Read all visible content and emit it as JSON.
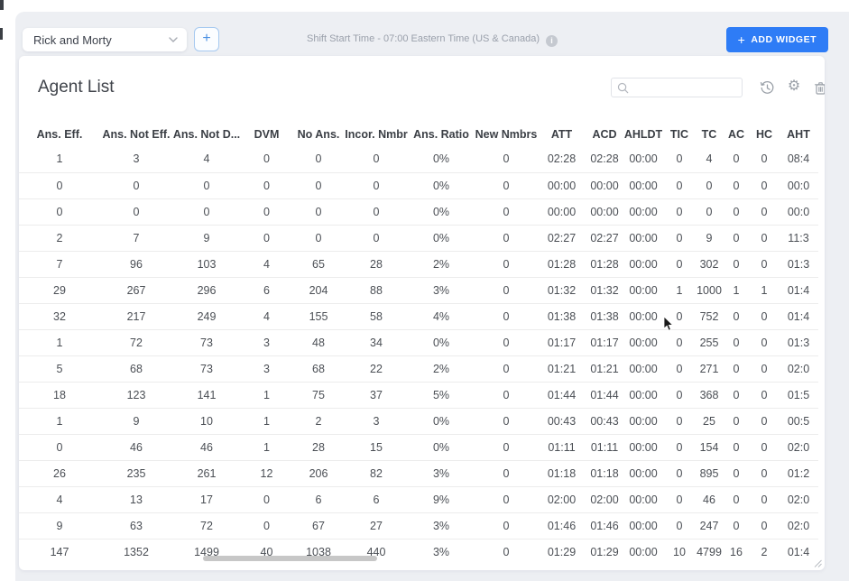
{
  "toolbar": {
    "dashboard_select": {
      "value": "Rick and Morty"
    },
    "add_tab": {
      "plus": "+"
    },
    "shift_info": "Shift Start Time - 07:00 Eastern Time (US & Canada)",
    "info_glyph": "i",
    "add_widget": {
      "plus": "+",
      "label": "ADD WIDGET"
    }
  },
  "widget": {
    "title": "Agent List",
    "search": {
      "value": "",
      "placeholder": ""
    },
    "icons": {
      "gear": "⚙"
    },
    "table": {
      "columns": [
        "Ans. Eff.",
        "Ans. Not Eff.",
        "Ans. Not D...",
        "DVM",
        "No Ans.",
        "Incor. Nmbr",
        "Ans. Ratio",
        "New Nmbrs",
        "ATT",
        "ACD",
        "AHLDT",
        "TIC",
        "TC",
        "AC",
        "HC",
        "AHT"
      ],
      "rows": [
        [
          "1",
          "3",
          "4",
          "0",
          "0",
          "0",
          "0%",
          "0",
          "02:28",
          "02:28",
          "00:00",
          "0",
          "4",
          "0",
          "0",
          "08:4"
        ],
        [
          "0",
          "0",
          "0",
          "0",
          "0",
          "0",
          "0%",
          "0",
          "00:00",
          "00:00",
          "00:00",
          "0",
          "0",
          "0",
          "0",
          "00:0"
        ],
        [
          "0",
          "0",
          "0",
          "0",
          "0",
          "0",
          "0%",
          "0",
          "00:00",
          "00:00",
          "00:00",
          "0",
          "0",
          "0",
          "0",
          "00:0"
        ],
        [
          "2",
          "7",
          "9",
          "0",
          "0",
          "0",
          "0%",
          "0",
          "02:27",
          "02:27",
          "00:00",
          "0",
          "9",
          "0",
          "0",
          "11:3"
        ],
        [
          "7",
          "96",
          "103",
          "4",
          "65",
          "28",
          "2%",
          "0",
          "01:28",
          "01:28",
          "00:00",
          "0",
          "302",
          "0",
          "0",
          "01:3"
        ],
        [
          "29",
          "267",
          "296",
          "6",
          "204",
          "88",
          "3%",
          "0",
          "01:32",
          "01:32",
          "00:00",
          "1",
          "1000",
          "1",
          "1",
          "01:4"
        ],
        [
          "32",
          "217",
          "249",
          "4",
          "155",
          "58",
          "4%",
          "0",
          "01:38",
          "01:38",
          "00:00",
          "0",
          "752",
          "0",
          "0",
          "01:4"
        ],
        [
          "1",
          "72",
          "73",
          "3",
          "48",
          "34",
          "0%",
          "0",
          "01:17",
          "01:17",
          "00:00",
          "0",
          "255",
          "0",
          "0",
          "01:3"
        ],
        [
          "5",
          "68",
          "73",
          "3",
          "68",
          "22",
          "2%",
          "0",
          "01:21",
          "01:21",
          "00:00",
          "0",
          "271",
          "0",
          "0",
          "02:0"
        ],
        [
          "18",
          "123",
          "141",
          "1",
          "75",
          "37",
          "5%",
          "0",
          "01:44",
          "01:44",
          "00:00",
          "0",
          "368",
          "0",
          "0",
          "01:5"
        ],
        [
          "1",
          "9",
          "10",
          "1",
          "2",
          "3",
          "0%",
          "0",
          "00:43",
          "00:43",
          "00:00",
          "0",
          "25",
          "0",
          "0",
          "00:5"
        ],
        [
          "0",
          "46",
          "46",
          "1",
          "28",
          "15",
          "0%",
          "0",
          "01:11",
          "01:11",
          "00:00",
          "0",
          "154",
          "0",
          "0",
          "02:0"
        ],
        [
          "26",
          "235",
          "261",
          "12",
          "206",
          "82",
          "3%",
          "0",
          "01:18",
          "01:18",
          "00:00",
          "0",
          "895",
          "0",
          "0",
          "01:2"
        ],
        [
          "4",
          "13",
          "17",
          "0",
          "6",
          "6",
          "9%",
          "0",
          "02:00",
          "02:00",
          "00:00",
          "0",
          "46",
          "0",
          "0",
          "02:0"
        ],
        [
          "9",
          "63",
          "72",
          "0",
          "67",
          "27",
          "3%",
          "0",
          "01:46",
          "01:46",
          "00:00",
          "0",
          "247",
          "0",
          "0",
          "02:0"
        ],
        [
          "147",
          "1352",
          "1499",
          "40",
          "1038",
          "440",
          "3%",
          "0",
          "01:29",
          "01:29",
          "00:00",
          "10",
          "4799",
          "16",
          "2",
          "01:4"
        ]
      ]
    }
  },
  "colors": {
    "accent_blue": "#2e7cf6",
    "panel_bg": "#edeff3",
    "icon_gray": "#9aa0a8",
    "row_border": "#ececec"
  }
}
